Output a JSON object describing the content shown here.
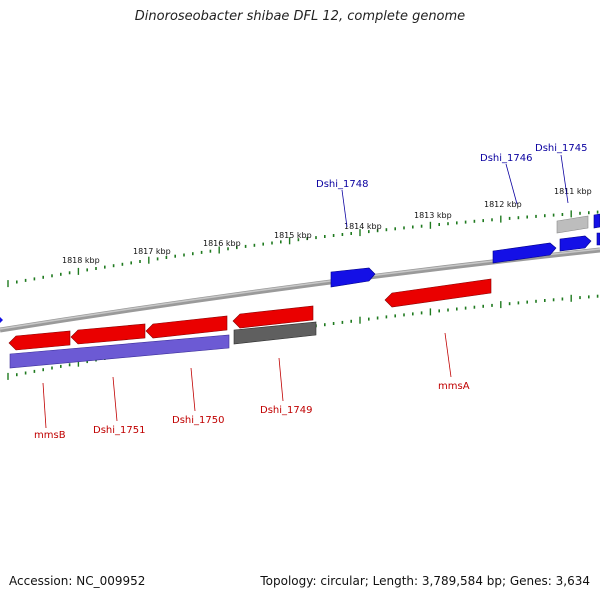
{
  "title": "Dinoroseobacter shibae DFL 12, complete genome",
  "footer": {
    "accession": "Accession: NC_009952",
    "stats": "Topology: circular; Length: 3,789,584 bp; Genes: 3,634"
  },
  "colors": {
    "backbone": "#8c8c8c",
    "tick": "#1f7a1f",
    "forward_gene": "#0a00e0",
    "reverse_gene": "#e80000",
    "pseudogene": "#b8b8b8",
    "rna_or_other": "#5d5d5d",
    "operon": "#6f5dd6",
    "label_forward": "#0a00a0",
    "label_reverse": "#c00000"
  },
  "scale_labels": [
    "1818 kbp",
    "1817 kbp",
    "1816 kbp",
    "1815 kbp",
    "1814 kbp",
    "1813 kbp",
    "1812 kbp",
    "1811 kbp"
  ],
  "gene_labels": [
    {
      "text": "Dshi_1748",
      "strand": "forward"
    },
    {
      "text": "Dshi_1746",
      "strand": "forward"
    },
    {
      "text": "Dshi_1745",
      "strand": "forward"
    },
    {
      "text": "mmsB",
      "strand": "reverse"
    },
    {
      "text": "Dshi_1751",
      "strand": "reverse"
    },
    {
      "text": "Dshi_1750",
      "strand": "reverse"
    },
    {
      "text": "Dshi_1749",
      "strand": "reverse"
    },
    {
      "text": "mmsA",
      "strand": "reverse"
    }
  ]
}
